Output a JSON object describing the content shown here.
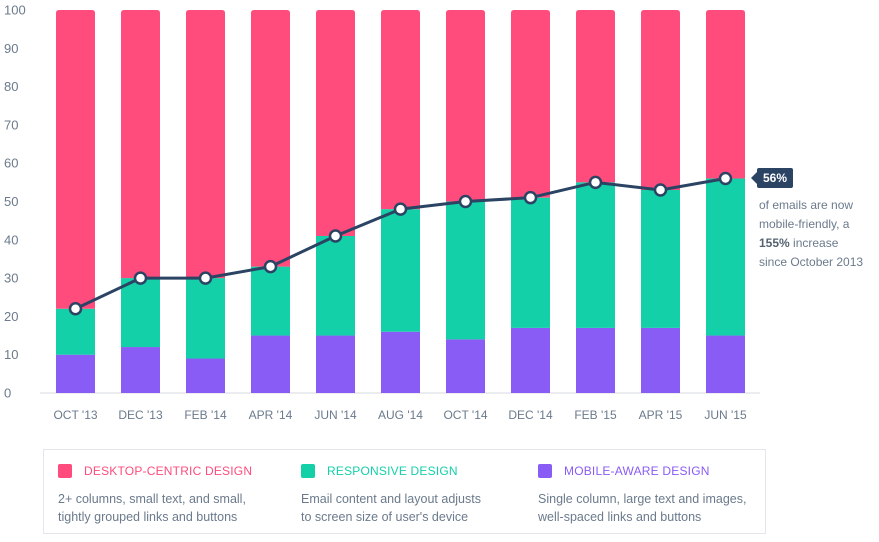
{
  "chart_data": {
    "type": "bar",
    "stacked": true,
    "categories": [
      "OCT '13",
      "DEC '13",
      "FEB '14",
      "APR '14",
      "JUN '14",
      "AUG '14",
      "OCT '14",
      "DEC '14",
      "FEB '15",
      "APR '15",
      "JUN '15"
    ],
    "series": [
      {
        "name": "MOBILE-AWARE DESIGN",
        "color": "#8a5cf6",
        "values": [
          10,
          12,
          9,
          15,
          15,
          16,
          14,
          17,
          17,
          17,
          15
        ]
      },
      {
        "name": "RESPONSIVE DESIGN",
        "color": "#14d0a8",
        "values": [
          12,
          18,
          21,
          18,
          26,
          32,
          36,
          34,
          38,
          36,
          41
        ]
      },
      {
        "name": "DESKTOP-CENTRIC DESIGN",
        "color": "#ff4c7c",
        "values": [
          78,
          70,
          70,
          67,
          59,
          52,
          50,
          49,
          45,
          47,
          44
        ]
      }
    ],
    "line": {
      "color": "#2b4464",
      "values": [
        22,
        30,
        30,
        33,
        41,
        48,
        50,
        51,
        55,
        53,
        56
      ]
    },
    "ylim": [
      0,
      100
    ],
    "yticks": [
      0,
      10,
      20,
      30,
      40,
      50,
      60,
      70,
      80,
      90,
      100
    ],
    "grid": false,
    "legend_position": "bottom"
  },
  "callout": {
    "value": "56%",
    "line1": "of emails are now",
    "line2": "mobile-friendly, a",
    "bold": "155%",
    "line3_rest": " increase",
    "line4": "since October 2013"
  },
  "legend": [
    {
      "title": "DESKTOP-CENTRIC DESIGN",
      "color": "#ff4c7c",
      "desc1": "2+ columns, small text, and small,",
      "desc2": "tightly grouped links and buttons"
    },
    {
      "title": "RESPONSIVE DESIGN",
      "color": "#14d0a8",
      "desc1": "Email content and layout adjusts",
      "desc2": "to screen size of user's device"
    },
    {
      "title": "MOBILE-AWARE DESIGN",
      "color": "#8a5cf6",
      "desc1": "Single column, large text and images,",
      "desc2": "well-spaced links and buttons"
    }
  ]
}
